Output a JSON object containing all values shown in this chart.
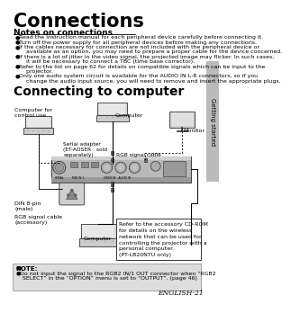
{
  "title": "Connections",
  "section1_title": "Notes on connections",
  "bullets": [
    "Read the instruction manual for each peripheral device carefully before connecting it.",
    "Turn off the power supply for all peripheral devices before making any connections.",
    "If the cables necessary for connection are not included with the peripheral device or\n    available as an option, you may need to prepare a proper cable for the device concerned.",
    "If there is a lot of jitter in the video signal, the projected image may flicker. In such cases,\n    it will be necessary to connect a TBC (time base corrector).",
    "Refer to the list on page 62 for details on compatible signals which can be input to the\n    projector.",
    "Only one audio system circuit is available for the AUDIO IN L-R connectors, so if you\n    change the audio input source, you will need to remove and insert the appropriate plugs."
  ],
  "section2_title": "Connecting to computer",
  "sidebar_text": "Getting started",
  "note_title": "NOTE:",
  "note_bullet": "Do not input the signal to the RGB2 IN/1 OUT connector when “RGB2\n    SELECT” in the “OPTION” menu is set to “OUTPUT”. (page 46)",
  "page_label": "ENGLISH-21",
  "ref_box_text": "Refer to the accessory CD-ROM\nfor details on the wireless\nnetwork that can be used for\ncontrolling the projector with a\npersonal computer.\n(PT-LB20NTU only)",
  "label_computer_ctrl": "Computer for\ncontrol use",
  "label_serial": "Serial adapter\n(ET-ADSER : sold\nseparately)",
  "label_din": "DIN 8-pin\n(male)",
  "label_rgb_acc": "RGB signal cable\n(accessory)",
  "label_computer_bot": "Computer",
  "label_computer_top": "Computer",
  "label_monitor": "Monitor",
  "label_rgb_top": "RGB signal cable",
  "bg_color": "#ffffff",
  "sidebar_bg": "#bbbbbb",
  "note_bg": "#dddddd"
}
